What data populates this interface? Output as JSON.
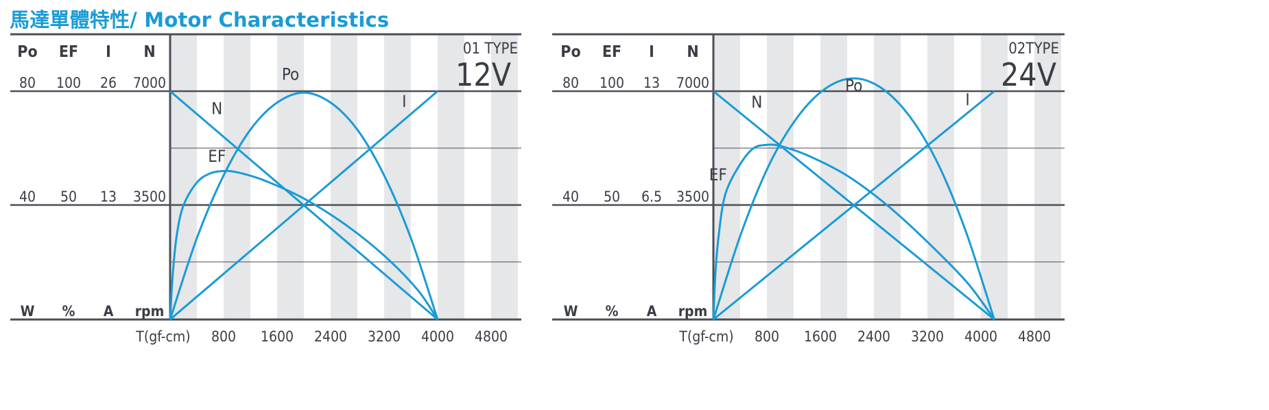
{
  "title": {
    "zh": "馬達單體特性/",
    "en": " Motor Characteristics"
  },
  "colors": {
    "curve": "#1a9bd6",
    "axis": "#4b4e56",
    "stripe": "#e6e7e9",
    "text": "#3a3d44"
  },
  "chart_data": [
    {
      "type": "line",
      "name": "01 TYPE 12V",
      "type_label": "01 TYPE",
      "voltage_label": "12V",
      "column_headers": [
        "Po",
        "EF",
        "I",
        "N"
      ],
      "units": [
        "W",
        "%",
        "A",
        "rpm"
      ],
      "scale_max": [
        "80",
        "100",
        "26",
        "7000"
      ],
      "scale_mid": [
        "40",
        "50",
        "13",
        "3500"
      ],
      "xlabel": "T(gf-cm)",
      "x_ticks": [
        800,
        1600,
        2400,
        3200,
        4000,
        4800
      ],
      "xlim": [
        0,
        5200
      ],
      "grid": true,
      "series": [
        {
          "name": "N",
          "x": [
            0,
            4000
          ],
          "y": [
            7000,
            0
          ]
        },
        {
          "name": "I",
          "x": [
            0,
            4000
          ],
          "y": [
            0,
            26
          ]
        },
        {
          "name": "Po",
          "x": [
            0,
            400,
            800,
            1200,
            1600,
            2000,
            2400,
            2800,
            3200,
            3600,
            4000
          ],
          "y": [
            0,
            28.5,
            50.5,
            66.5,
            76,
            79.5,
            76,
            66.5,
            50.5,
            28.5,
            0
          ]
        },
        {
          "name": "EF",
          "x": [
            0,
            40,
            100,
            200,
            400,
            600,
            800,
            1000,
            1400,
            2000,
            2600,
            3200,
            3700,
            4000
          ],
          "y": [
            0,
            20,
            37,
            50,
            60,
            64,
            65,
            64.5,
            61,
            53,
            42,
            28,
            13,
            0
          ]
        }
      ]
    },
    {
      "type": "line",
      "name": "02TYPE 24V",
      "type_label": "02TYPE",
      "voltage_label": "24V",
      "column_headers": [
        "Po",
        "EF",
        "I",
        "N"
      ],
      "units": [
        "W",
        "%",
        "A",
        "rpm"
      ],
      "scale_max": [
        "80",
        "100",
        "13",
        "7000"
      ],
      "scale_mid": [
        "40",
        "50",
        "6.5",
        "3500"
      ],
      "xlabel": "T(gf-cm)",
      "x_ticks": [
        800,
        1600,
        2400,
        3200,
        4000,
        4800
      ],
      "xlim": [
        0,
        5200
      ],
      "grid": true,
      "series": [
        {
          "name": "N",
          "x": [
            0,
            4200
          ],
          "y": [
            7000,
            0
          ]
        },
        {
          "name": "I",
          "x": [
            0,
            4200
          ],
          "y": [
            0,
            13
          ]
        },
        {
          "name": "Po",
          "x": [
            0,
            420,
            840,
            1260,
            1680,
            2100,
            2520,
            2940,
            3360,
            3780,
            4200
          ],
          "y": [
            0,
            30.5,
            54.5,
            71,
            81,
            84.5,
            81,
            71,
            54.5,
            30.5,
            0
          ]
        },
        {
          "name": "EF",
          "x": [
            0,
            30,
            80,
            180,
            400,
            600,
            800,
            1000,
            1400,
            2000,
            2600,
            3200,
            3800,
            4200
          ],
          "y": [
            0,
            20,
            37,
            55,
            68,
            75,
            76.5,
            76,
            72,
            63,
            50,
            34,
            16,
            0
          ]
        }
      ]
    }
  ]
}
